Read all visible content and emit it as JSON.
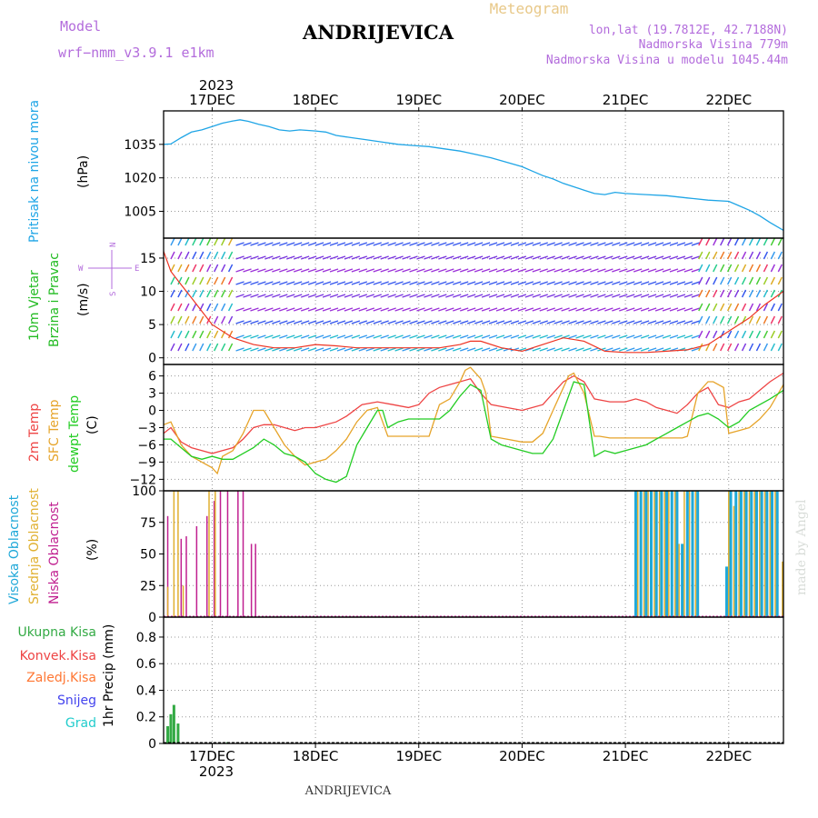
{
  "header": {
    "model_label": "Model",
    "model_value": "wrf−nmm_v3.9.1  e1km",
    "title": "ANDRIJEVICA",
    "meteogram": "Meteogram",
    "lonlat": "lon,lat (19.7812E, 42.7188N)",
    "elevation": "Nadmorska Visina 779m",
    "model_elevation": "Nadmorska Visina u modelu 1045.44m",
    "year_top": "2023",
    "year_bottom": "2023",
    "footer": "ANDRIJEVICA",
    "signature": "made by Angel"
  },
  "colors": {
    "pressure": "#1fa5e6",
    "wind_label": "#22bb22",
    "temp2m": "#ee4444",
    "sfc": "#e6a42a",
    "dewpt": "#22cc22",
    "cloud_high": "#20a8d8",
    "cloud_mid": "#e0b030",
    "cloud_low": "#c02090",
    "precip_total": "#33aa44",
    "precip_conv": "#ee4444",
    "precip_frz": "#ff7733",
    "precip_snow": "#4444ee",
    "precip_hail": "#22cccc",
    "purple_text": "#b36cdc"
  },
  "chart_data": [
    {
      "type": "line",
      "panel": "pressure",
      "x_ticks": [
        "17DEC",
        "18DEC",
        "19DEC",
        "20DEC",
        "21DEC",
        "22DEC"
      ],
      "ylabel_main": "Pritisak na nivou mora",
      "ylabel_unit": "(hPa)",
      "yticks": [
        "1005",
        "1020",
        "1035"
      ],
      "ylim": [
        993,
        1050
      ],
      "x_range_days": [
        16.53,
        22.53
      ],
      "series": [
        {
          "x": [
            16.53,
            16.6,
            16.7,
            16.8,
            16.9,
            17.0,
            17.1,
            17.2,
            17.27,
            17.35,
            17.45,
            17.55,
            17.65,
            17.75,
            17.85,
            18.0,
            18.1,
            18.2,
            18.35,
            18.5,
            18.65,
            18.8,
            18.95,
            19.1,
            19.25,
            19.4,
            19.55,
            19.7,
            19.85,
            20.0,
            20.1,
            20.2,
            20.3,
            20.4,
            20.5,
            20.6,
            20.7,
            20.8,
            20.9,
            21.0,
            21.2,
            21.4,
            21.6,
            21.8,
            22.0,
            22.1,
            22.2,
            22.3,
            22.4,
            22.53
          ],
          "values": [
            1035,
            1035.2,
            1038,
            1040.5,
            1041.5,
            1043,
            1044.5,
            1045.5,
            1046,
            1045.3,
            1044,
            1043,
            1041.5,
            1041,
            1041.5,
            1041,
            1040.5,
            1039,
            1038,
            1037,
            1036,
            1035,
            1034.5,
            1034,
            1033,
            1032,
            1030.5,
            1029,
            1027,
            1025,
            1023,
            1021,
            1019.5,
            1017.5,
            1016,
            1014.5,
            1013,
            1012.5,
            1013.5,
            1013,
            1012.5,
            1012,
            1011,
            1010,
            1009.5,
            1007.5,
            1005.5,
            1003,
            1000,
            996.5
          ]
        }
      ]
    },
    {
      "type": "line",
      "panel": "wind",
      "ylabel_main": "10m Vjetar",
      "ylabel_sub": "Brzina i Pravac",
      "ylabel_unit": "(m/s)",
      "compass_n": "N",
      "compass_s": "S",
      "compass_e": "E",
      "compass_w": "W",
      "yticks": [
        "0",
        "5",
        "10",
        "15"
      ],
      "ylim": [
        -1,
        18
      ],
      "series": [
        {
          "name": "speed",
          "x": [
            16.53,
            16.6,
            16.7,
            16.8,
            16.9,
            17.0,
            17.2,
            17.4,
            17.6,
            17.8,
            18.0,
            18.2,
            18.4,
            18.6,
            18.8,
            19.0,
            19.2,
            19.4,
            19.5,
            19.6,
            19.8,
            20.0,
            20.2,
            20.4,
            20.6,
            20.8,
            21.0,
            21.2,
            21.4,
            21.6,
            21.8,
            22.0,
            22.1,
            22.2,
            22.35,
            22.53
          ],
          "values": [
            16,
            13,
            11,
            9,
            7,
            5,
            3,
            2,
            1.5,
            1.5,
            2,
            1.8,
            1.5,
            1.5,
            1.5,
            1.5,
            1.5,
            2,
            2.5,
            2.5,
            1.5,
            1,
            2,
            3,
            2.5,
            1,
            0.8,
            0.8,
            1,
            1.2,
            2,
            4,
            5,
            6,
            8,
            10
          ]
        }
      ]
    },
    {
      "type": "line",
      "panel": "temperature",
      "ylabel_2m": "2m Temp",
      "ylabel_sfc": "SFC Temp",
      "ylabel_dew": "dewpt Temp",
      "ylabel_unit": "(C)",
      "yticks": [
        "−12",
        "−9",
        "−6",
        "−3",
        "0",
        "3",
        "6"
      ],
      "ylim": [
        -14,
        8
      ],
      "series": [
        {
          "name": "2m Temp",
          "x": [
            16.53,
            16.6,
            16.7,
            16.8,
            16.9,
            17.0,
            17.1,
            17.2,
            17.3,
            17.4,
            17.5,
            17.6,
            17.7,
            17.8,
            17.9,
            18.0,
            18.1,
            18.2,
            18.3,
            18.45,
            18.6,
            18.75,
            18.9,
            19.0,
            19.1,
            19.2,
            19.3,
            19.4,
            19.5,
            19.6,
            19.7,
            19.85,
            20.0,
            20.1,
            20.2,
            20.3,
            20.4,
            20.5,
            20.6,
            20.7,
            20.85,
            21.0,
            21.1,
            21.2,
            21.3,
            21.4,
            21.5,
            21.6,
            21.7,
            21.8,
            21.9,
            22.0,
            22.1,
            22.2,
            22.3,
            22.4,
            22.53
          ],
          "values": [
            -4,
            -3,
            -5.5,
            -6.5,
            -7,
            -7.5,
            -7,
            -6.5,
            -5,
            -3,
            -2.5,
            -2.5,
            -3,
            -3.5,
            -3,
            -3,
            -2.5,
            -2,
            -1,
            1,
            1.5,
            1,
            0.5,
            1,
            3,
            4,
            4.5,
            5,
            5.5,
            3,
            1,
            0.5,
            0,
            0.5,
            1,
            3,
            5,
            6,
            5,
            2,
            1.5,
            1.5,
            2,
            1.5,
            0.5,
            0,
            -0.5,
            1,
            3,
            4,
            1,
            0.5,
            1.5,
            2,
            3.5,
            5,
            6.5
          ]
        },
        {
          "name": "SFC Temp",
          "x": [
            16.53,
            16.6,
            16.7,
            16.8,
            16.9,
            17.0,
            17.05,
            17.1,
            17.2,
            17.3,
            17.4,
            17.5,
            17.6,
            17.7,
            17.8,
            17.9,
            18.0,
            18.1,
            18.2,
            18.3,
            18.4,
            18.5,
            18.6,
            18.65,
            18.7,
            18.8,
            18.9,
            19.0,
            19.1,
            19.2,
            19.3,
            19.4,
            19.45,
            19.5,
            19.6,
            19.65,
            19.7,
            19.85,
            20.0,
            20.1,
            20.2,
            20.3,
            20.4,
            20.45,
            20.5,
            20.6,
            20.7,
            20.75,
            20.85,
            21.0,
            21.15,
            21.3,
            21.4,
            21.5,
            21.55,
            21.6,
            21.7,
            21.8,
            21.85,
            21.95,
            22.0,
            22.1,
            22.2,
            22.3,
            22.4,
            22.53
          ],
          "values": [
            -2.5,
            -2,
            -6,
            -8,
            -9,
            -10,
            -11,
            -8,
            -7,
            -4,
            0,
            0,
            -3,
            -6,
            -8,
            -9.5,
            -9,
            -8.5,
            -7,
            -5,
            -2,
            0,
            0.5,
            -2,
            -4.5,
            -4.5,
            -4.5,
            -4.5,
            -4.5,
            1,
            2,
            5,
            7,
            7.5,
            5.5,
            3,
            -4.5,
            -5,
            -5.5,
            -5.5,
            -4,
            0,
            4,
            6,
            6.5,
            3,
            -4.5,
            -4.5,
            -4.8,
            -4.8,
            -4.8,
            -4.8,
            -4.8,
            -4.8,
            -4.8,
            -4.5,
            3,
            5,
            5,
            4,
            -4,
            -3.5,
            -3,
            -1.5,
            0.5,
            4.5
          ]
        },
        {
          "name": "dewpt Temp",
          "x": [
            16.53,
            16.6,
            16.7,
            16.8,
            16.9,
            17.0,
            17.1,
            17.2,
            17.3,
            17.4,
            17.5,
            17.6,
            17.7,
            17.8,
            17.9,
            18.0,
            18.1,
            18.2,
            18.3,
            18.4,
            18.5,
            18.6,
            18.65,
            18.7,
            18.8,
            18.9,
            19.0,
            19.1,
            19.2,
            19.3,
            19.4,
            19.5,
            19.6,
            19.7,
            19.8,
            19.9,
            20.0,
            20.1,
            20.2,
            20.3,
            20.4,
            20.5,
            20.6,
            20.7,
            20.8,
            20.9,
            21.0,
            21.1,
            21.2,
            21.3,
            21.4,
            21.5,
            21.6,
            21.7,
            21.8,
            21.9,
            22.0,
            22.1,
            22.2,
            22.3,
            22.4,
            22.53
          ],
          "values": [
            -5,
            -5,
            -6.5,
            -8,
            -8.5,
            -8,
            -8.5,
            -8.5,
            -7.5,
            -6.5,
            -5,
            -6,
            -7.5,
            -8,
            -9,
            -11,
            -12,
            -12.5,
            -11.5,
            -6,
            -3,
            0,
            0,
            -3,
            -2,
            -1.5,
            -1.5,
            -1.5,
            -1.5,
            0,
            2.5,
            4.5,
            3.5,
            -5,
            -6,
            -6.5,
            -7,
            -7.5,
            -7.5,
            -5,
            0,
            5,
            4.5,
            -8,
            -7,
            -7.5,
            -7,
            -6.5,
            -6,
            -5,
            -4,
            -3,
            -2,
            -1,
            -0.5,
            -1.5,
            -3,
            -2,
            0,
            1,
            2,
            3.5
          ]
        }
      ]
    },
    {
      "type": "bar",
      "panel": "cloud",
      "ylabel_high": "Visoka Oblacnost",
      "ylabel_mid": "Srednja Oblacnost",
      "ylabel_low": "Niska Oblacnost",
      "ylabel_unit": "(%)",
      "yticks": [
        "0",
        "25",
        "50",
        "75",
        "100"
      ],
      "ylim": [
        0,
        100
      ],
      "series": [
        {
          "name": "Niska Oblacnost",
          "x": [
            16.57,
            16.7,
            16.75,
            16.85,
            16.95,
            17.02,
            17.08,
            17.15,
            17.25,
            17.3,
            17.38,
            17.42
          ],
          "values": [
            80,
            62,
            64,
            72,
            80,
            92,
            100,
            100,
            100,
            100,
            58,
            58
          ]
        },
        {
          "name": "Srednja Oblacnost",
          "x": [
            16.57,
            16.63,
            16.67,
            16.72,
            16.97,
            17.03,
            21.12,
            21.18,
            21.22,
            21.28,
            21.33,
            21.38,
            21.42,
            21.48,
            21.52,
            21.57,
            21.62,
            21.68,
            22.0,
            22.05,
            22.1,
            22.15,
            22.2,
            22.25,
            22.3,
            22.35,
            22.4,
            22.45,
            22.52
          ],
          "values": [
            24,
            100,
            100,
            25,
            100,
            100,
            100,
            100,
            100,
            100,
            100,
            100,
            100,
            100,
            58,
            100,
            100,
            100,
            100,
            88,
            100,
            100,
            100,
            100,
            100,
            100,
            100,
            100,
            44
          ]
        },
        {
          "name": "Visoka Oblacnost",
          "x": [
            21.1,
            21.15,
            21.2,
            21.25,
            21.3,
            21.35,
            21.4,
            21.45,
            21.5,
            21.55,
            21.6,
            21.65,
            21.7,
            21.98,
            22.02,
            22.07,
            22.12,
            22.17,
            22.22,
            22.27,
            22.32,
            22.37,
            22.42,
            22.47
          ],
          "values": [
            100,
            100,
            100,
            100,
            100,
            100,
            100,
            100,
            100,
            58,
            100,
            100,
            100,
            40,
            100,
            100,
            100,
            100,
            100,
            100,
            100,
            100,
            100,
            100
          ]
        }
      ]
    },
    {
      "type": "bar",
      "panel": "precip",
      "x_ticks": [
        "17DEC",
        "18DEC",
        "19DEC",
        "20DEC",
        "21DEC",
        "22DEC"
      ],
      "ylabel_unit": "1hr Precip (mm)",
      "legend": [
        "Ukupna Kisa",
        "Konvek.Kisa",
        "Zaledj.Kisa",
        "Snijeg",
        "Grad"
      ],
      "yticks": [
        "0",
        "0.2",
        "0.4",
        "0.6",
        "0.8"
      ],
      "ylim": [
        0,
        0.95
      ],
      "series": [
        {
          "name": "Ukupna Kisa",
          "x": [
            16.57,
            16.6,
            16.63,
            16.67,
            17.15
          ],
          "values": [
            0.13,
            0.22,
            0.29,
            0.15,
            0.01
          ]
        }
      ]
    }
  ]
}
